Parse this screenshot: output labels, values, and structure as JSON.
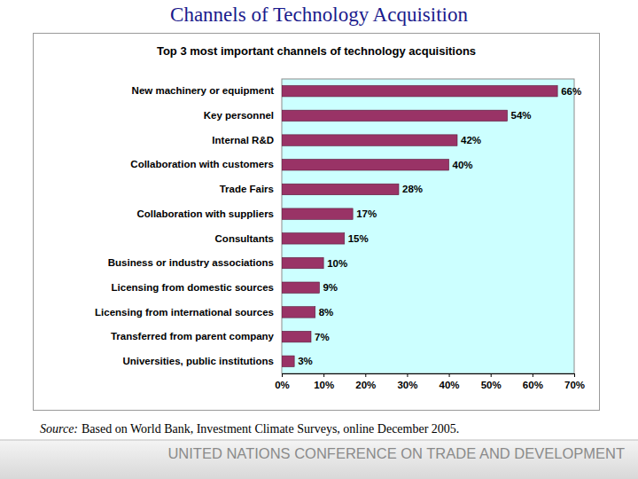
{
  "slide": {
    "title": "Channels of Technology Acquisition",
    "source_label": "Source:",
    "source": "Based on World Bank, Investment Climate Surveys, online December 2005.",
    "footer": "UNITED NATIONS CONFERENCE ON TRADE AND DEVELOPMENT"
  },
  "chart_data": {
    "type": "bar",
    "title": "Top 3 most important channels of technology acquisitions",
    "orientation": "horizontal",
    "categories": [
      "New machinery or equipment",
      "Key personnel",
      "Internal R&D",
      "Collaboration with customers",
      "Trade Fairs",
      "Collaboration with suppliers",
      "Consultants",
      "Business or industry associations",
      "Licensing from domestic sources",
      "Licensing from international sources",
      "Transferred from parent company",
      "Universities, public institutions"
    ],
    "values": [
      66,
      54,
      42,
      40,
      28,
      17,
      15,
      10,
      9,
      8,
      7,
      3
    ],
    "value_labels": [
      "66%",
      "54%",
      "42%",
      "40%",
      "28%",
      "17%",
      "15%",
      "10%",
      "9%",
      "8%",
      "7%",
      "3%"
    ],
    "color": "#993366",
    "data_labels": true,
    "grid": false,
    "xlim": [
      0,
      70
    ],
    "xticks": [
      {
        "value": 0,
        "label": "0%"
      },
      {
        "value": 10,
        "label": "10%"
      },
      {
        "value": 20,
        "label": "20%"
      },
      {
        "value": 30,
        "label": "30%"
      },
      {
        "value": 40,
        "label": "40%"
      },
      {
        "value": 50,
        "label": "50%"
      },
      {
        "value": 60,
        "label": "60%"
      },
      {
        "value": 70,
        "label": "70%"
      }
    ]
  }
}
